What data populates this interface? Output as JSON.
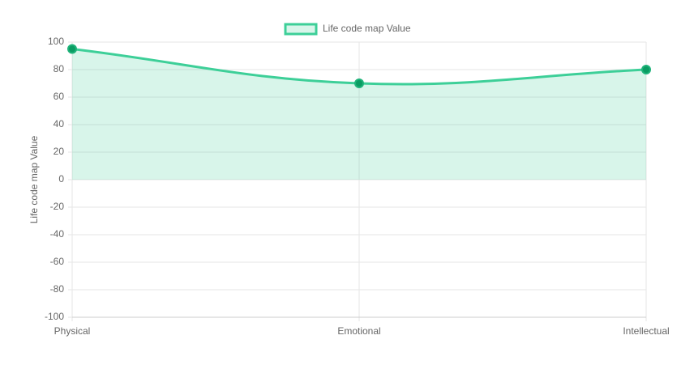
{
  "chart_data": {
    "type": "line",
    "y_label": "Life code map Value",
    "categories": [
      "Physical",
      "Emotional",
      "Intellectual"
    ],
    "series": [
      {
        "name": "Life code map Value",
        "color": "#3dcf98",
        "values": [
          95,
          70,
          80
        ]
      }
    ],
    "ylim": [
      -100,
      100
    ],
    "yticks": [
      -100,
      -80,
      -60,
      -40,
      -20,
      0,
      20,
      40,
      60,
      80,
      100
    ],
    "grid": true,
    "fill": true,
    "smooth": true,
    "legend": "top"
  }
}
